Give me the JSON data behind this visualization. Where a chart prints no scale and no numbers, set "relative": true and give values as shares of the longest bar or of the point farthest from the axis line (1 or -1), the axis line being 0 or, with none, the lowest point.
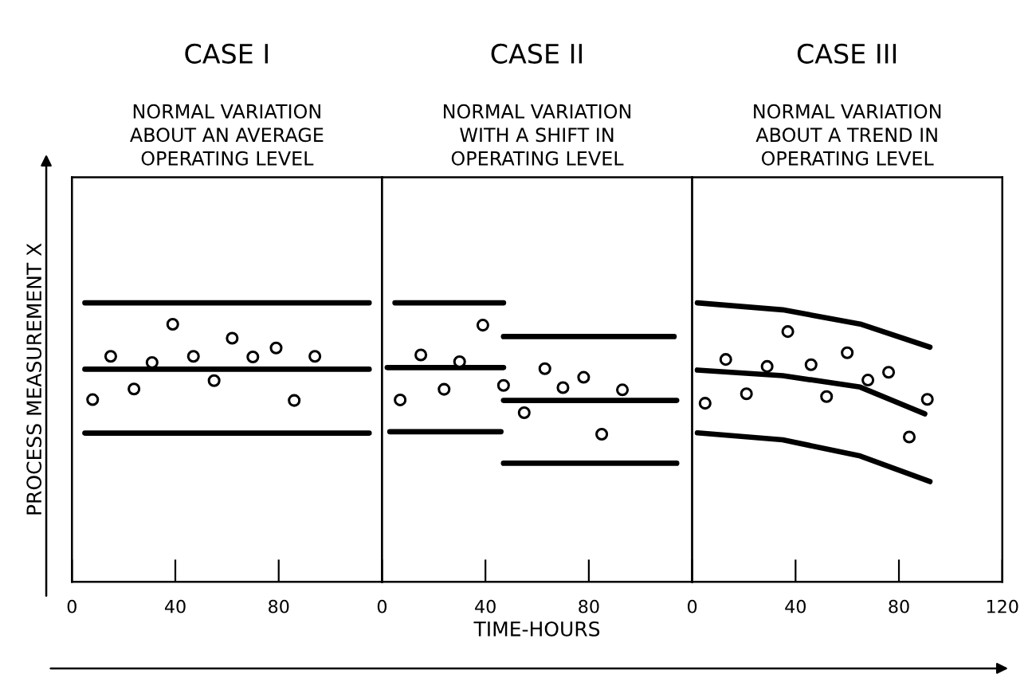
{
  "chart_data": [
    {
      "type": "scatter",
      "title": "CASE I",
      "subtitle": "NORMAL VARIATION\nABOUT AN AVERAGE\nOPERATING LEVEL",
      "ylabel": "PROCESS MEASUREMENT X",
      "relative": true,
      "xlim": [
        0,
        120
      ],
      "xticks": [
        0,
        40,
        80
      ],
      "tick_labels": "x",
      "grid": false,
      "legend": false,
      "series": [
        {
          "color": "#000000",
          "marker": "circle",
          "x": [
            8,
            15,
            24,
            31,
            39,
            47,
            55,
            62,
            70,
            79,
            86,
            94
          ],
          "values": [
            0.653,
            0.808,
            0.691,
            0.786,
            0.923,
            0.808,
            0.721,
            0.873,
            0.806,
            0.838,
            0.65,
            0.808
          ]
        },
        {
          "type": "line",
          "color": "#000000",
          "line_style": "solid",
          "x": [
            5,
            115
          ],
          "values": [
            1.0,
            1.0
          ]
        },
        {
          "type": "line",
          "color": "#000000",
          "line_style": "solid",
          "x": [
            5,
            115
          ],
          "values": [
            0.762,
            0.762
          ]
        },
        {
          "type": "line",
          "color": "#000000",
          "line_style": "solid",
          "x": [
            5,
            115
          ],
          "values": [
            0.533,
            0.533
          ]
        }
      ]
    },
    {
      "type": "scatter",
      "title": "CASE II",
      "subtitle": "NORMAL VARIATION\nWITH A SHIFT IN\nOPERATING LEVEL",
      "xlabel": "TIME-HOURS",
      "relative": true,
      "xlim": [
        0,
        120
      ],
      "xticks": [
        0,
        40,
        80
      ],
      "tick_labels": "x",
      "grid": false,
      "legend": false,
      "series": [
        {
          "color": "#000000",
          "marker": "circle",
          "x": [
            7,
            15,
            24,
            30,
            39,
            47,
            55,
            63,
            70,
            78,
            85,
            93
          ],
          "values": [
            0.652,
            0.813,
            0.69,
            0.789,
            0.92,
            0.704,
            0.606,
            0.764,
            0.696,
            0.733,
            0.529,
            0.688
          ]
        },
        {
          "type": "line",
          "color": "#000000",
          "line_style": "solid",
          "x": [
            5,
            47
          ],
          "values": [
            1.0,
            1.0
          ]
        },
        {
          "type": "line",
          "color": "#000000",
          "line_style": "solid",
          "x": [
            2,
            47
          ],
          "values": [
            0.768,
            0.768
          ]
        },
        {
          "type": "line",
          "color": "#000000",
          "line_style": "solid",
          "x": [
            3,
            46
          ],
          "values": [
            0.538,
            0.538
          ]
        },
        {
          "type": "line",
          "color": "#000000",
          "line_style": "solid",
          "x": [
            47,
            113
          ],
          "values": [
            0.879,
            0.879
          ]
        },
        {
          "type": "line",
          "color": "#000000",
          "line_style": "solid",
          "x": [
            47,
            114
          ],
          "values": [
            0.65,
            0.65
          ]
        },
        {
          "type": "line",
          "color": "#000000",
          "line_style": "solid",
          "x": [
            47,
            114
          ],
          "values": [
            0.425,
            0.425
          ]
        }
      ]
    },
    {
      "type": "scatter",
      "title": "CASE III",
      "subtitle": "NORMAL VARIATION\nABOUT A TREND IN\nOPERATING LEVEL",
      "relative": true,
      "xlim": [
        0,
        120
      ],
      "xticks": [
        0,
        40,
        80,
        120
      ],
      "tick_labels": "x",
      "grid": false,
      "legend": false,
      "series": [
        {
          "color": "#000000",
          "marker": "circle",
          "x": [
            5,
            13,
            21,
            29,
            37,
            46,
            52,
            60,
            68,
            76,
            84,
            91
          ],
          "values": [
            0.64,
            0.797,
            0.674,
            0.772,
            0.897,
            0.778,
            0.664,
            0.821,
            0.723,
            0.751,
            0.519,
            0.654
          ]
        },
        {
          "type": "line",
          "color": "#000000",
          "line_style": "solid",
          "x": [
            2,
            35,
            65,
            92
          ],
          "values": [
            1.0,
            0.975,
            0.924,
            0.841
          ]
        },
        {
          "type": "line",
          "color": "#000000",
          "line_style": "solid",
          "x": [
            2,
            35,
            65,
            90
          ],
          "values": [
            0.759,
            0.739,
            0.698,
            0.602
          ]
        },
        {
          "type": "line",
          "color": "#000000",
          "line_style": "solid",
          "x": [
            2,
            35,
            65,
            92
          ],
          "values": [
            0.534,
            0.509,
            0.451,
            0.359
          ]
        }
      ]
    }
  ]
}
